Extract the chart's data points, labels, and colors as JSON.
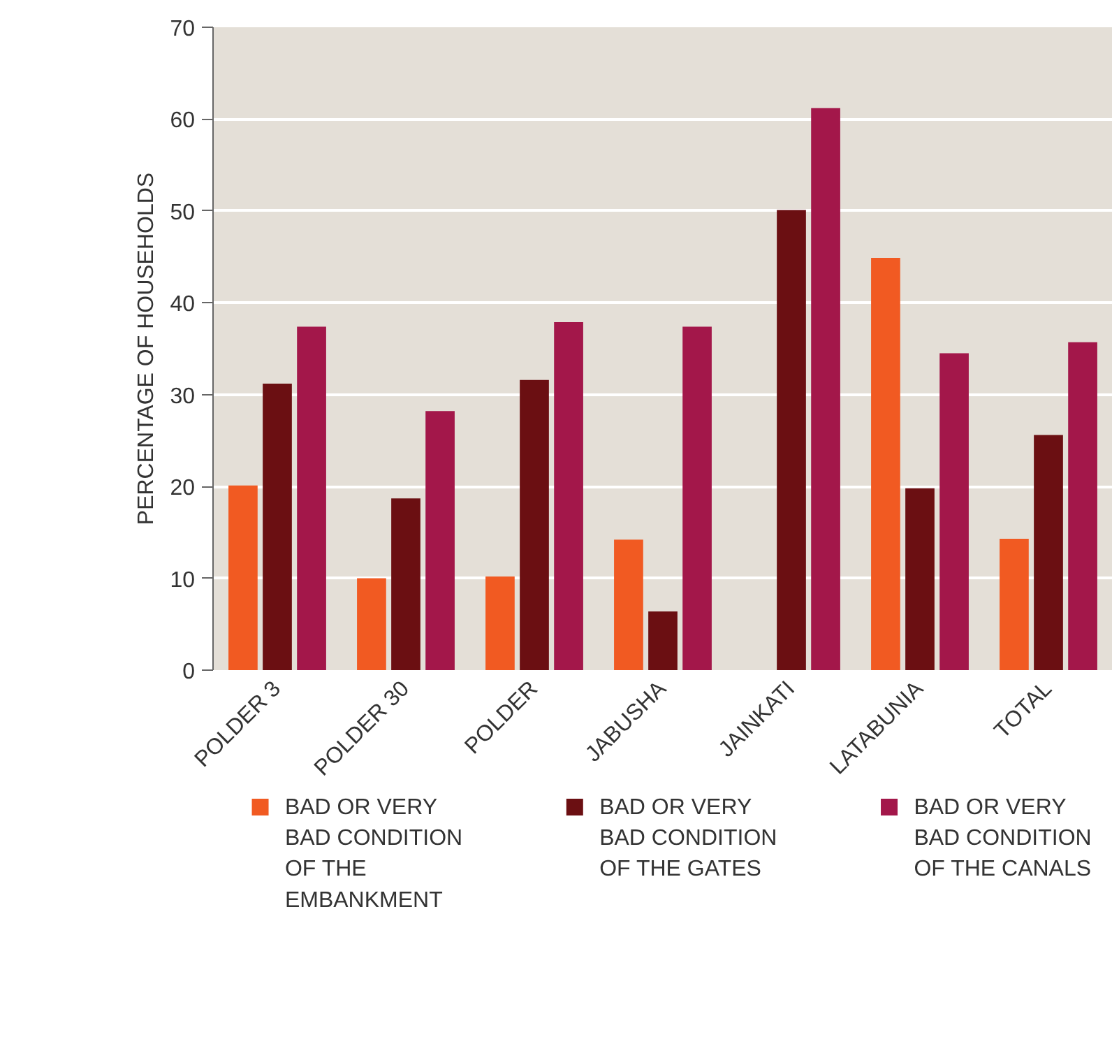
{
  "chart_data": {
    "type": "bar",
    "ylabel": "PERCENTAGE OF HOUSEHOLDS",
    "categories": [
      "POLDER 3",
      "POLDER 30",
      "POLDER",
      "JABUSHA",
      "JAINKATI",
      "LATABUNIA",
      "TOTAL"
    ],
    "series": [
      {
        "name": "BAD OR VERY BAD CONDITION OF THE EMBANKMENT",
        "color": "#f15a22",
        "values": [
          20.1,
          10,
          10.2,
          14.2,
          null,
          44.9,
          14.3
        ]
      },
      {
        "name": "BAD OR VERY BAD CONDITION OF THE GATES",
        "color": "#6b0f12",
        "values": [
          31.2,
          18.7,
          31.6,
          6.4,
          50.1,
          19.8,
          25.6
        ]
      },
      {
        "name": "BAD OR VERY BAD CONDITION OF THE CANALS",
        "color": "#a3174a",
        "values": [
          37.4,
          28.2,
          37.9,
          37.4,
          61.2,
          34.5,
          35.7
        ]
      }
    ],
    "ylim": [
      0,
      70
    ],
    "yticks": [
      0,
      10,
      20,
      30,
      40,
      50,
      60,
      70
    ],
    "grid": "y",
    "legend": "bottom"
  }
}
